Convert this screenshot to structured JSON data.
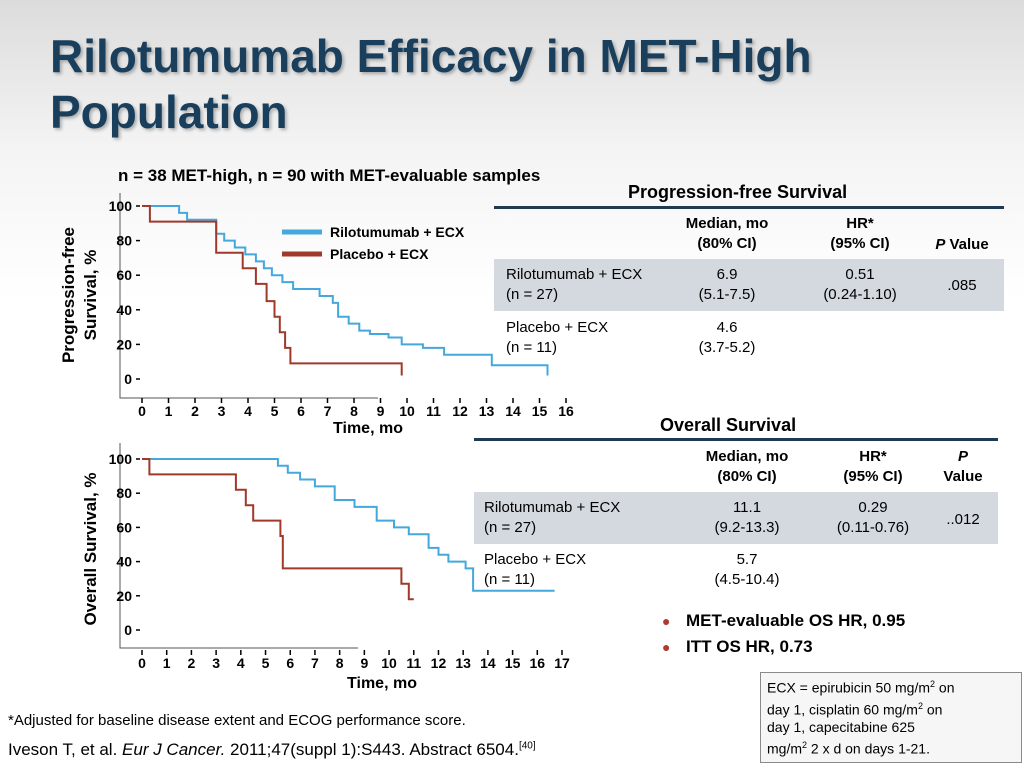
{
  "title": "Rilotumumab Efficacy in MET-High Population",
  "subtitle": "n = 38 MET-high, n = 90 with MET-evaluable samples",
  "colors": {
    "rilotumumab": "#44a8dc",
    "placebo": "#a0392a",
    "title": "#1a3f5c",
    "table_rule": "#1d3a52",
    "table_shade": "#d4d9df"
  },
  "chart_data": [
    {
      "type": "line",
      "step": true,
      "ylabel_line1": "Progression-free",
      "ylabel_line2": "Survival, %",
      "xlabel": "Time, mo",
      "xlim": [
        0,
        16
      ],
      "ylim": [
        0,
        100
      ],
      "xticks": [
        "0",
        "1",
        "2",
        "3",
        "4",
        "5",
        "6",
        "7",
        "8",
        "9",
        "10",
        "11",
        "12",
        "13",
        "14",
        "15",
        "16"
      ],
      "yticks": [
        "100",
        "80",
        "60",
        "40",
        "20",
        "0"
      ],
      "series": [
        {
          "name": "Rilotumumab + ECX",
          "color": "#44a8dc",
          "x": [
            0,
            1.4,
            1.7,
            2.8,
            3.1,
            3.5,
            3.9,
            4.3,
            4.6,
            4.9,
            5.3,
            5.7,
            6.7,
            7.2,
            7.4,
            7.8,
            8.2,
            8.6,
            9.3,
            9.8,
            10.6,
            11.4,
            13.2,
            15.3
          ],
          "y": [
            100,
            96,
            92,
            84,
            80,
            76,
            72,
            68,
            64,
            60,
            56,
            52,
            48,
            44,
            36,
            32,
            28,
            26,
            24,
            20,
            18,
            14,
            8,
            2
          ]
        },
        {
          "name": "Placebo + ECX",
          "color": "#a0392a",
          "x": [
            0,
            0.3,
            2.8,
            3.8,
            4.3,
            4.7,
            5.0,
            5.2,
            5.4,
            5.6,
            9.8
          ],
          "y": [
            100,
            91,
            73,
            64,
            55,
            45,
            36,
            27,
            18,
            9,
            2
          ]
        }
      ]
    },
    {
      "type": "line",
      "step": true,
      "ylabel": "Overall Survival, %",
      "xlabel": "Time, mo",
      "xlim": [
        0,
        17
      ],
      "ylim": [
        0,
        100
      ],
      "xticks": [
        "0",
        "1",
        "2",
        "3",
        "4",
        "5",
        "6",
        "7",
        "8",
        "9",
        "10",
        "11",
        "12",
        "13",
        "14",
        "15",
        "16",
        "17"
      ],
      "yticks": [
        "100",
        "80",
        "60",
        "40",
        "20",
        "0"
      ],
      "series": [
        {
          "name": "Rilotumumab + ECX",
          "color": "#44a8dc",
          "x": [
            0,
            5.5,
            5.9,
            6.4,
            7.0,
            7.8,
            8.6,
            9.5,
            10.2,
            10.8,
            11.6,
            12.0,
            12.4,
            13.1,
            13.4,
            16.7
          ],
          "y": [
            100,
            96,
            92,
            88,
            84,
            76,
            72,
            64,
            60,
            56,
            48,
            44,
            40,
            36,
            23,
            23
          ]
        },
        {
          "name": "Placebo + ECX",
          "color": "#a0392a",
          "x": [
            0,
            0.3,
            3.8,
            4.2,
            4.5,
            5.6,
            5.7,
            10.5,
            10.8,
            11.0
          ],
          "y": [
            100,
            91,
            82,
            73,
            64,
            55,
            36,
            27,
            18,
            18
          ]
        }
      ]
    }
  ],
  "legend": [
    {
      "name": "Rilotumumab + ECX",
      "color": "#44a8dc"
    },
    {
      "name": "Placebo + ECX",
      "color": "#a0392a"
    }
  ],
  "pfs_table": {
    "title": "Progression-free  Survival",
    "col_median_1": "Median, mo",
    "col_median_2": "(80% CI)",
    "col_hr_1": "HR*",
    "col_hr_2": "(95% CI)",
    "col_p_italic": "P",
    "col_p_rest": " Value",
    "rows": [
      {
        "arm": "Rilotumumab + ECX",
        "n": "(n = 27)",
        "median": "6.9",
        "median_ci": "(5.1-7.5)",
        "hr": "0.51",
        "hr_ci": "(0.24-1.10)",
        "p": ".085"
      },
      {
        "arm": "Placebo + ECX",
        "n": "(n = 11)",
        "median": "4.6",
        "median_ci": "(3.7-5.2)",
        "hr": "",
        "hr_ci": "",
        "p": ""
      }
    ]
  },
  "os_table": {
    "title": "Overall Survival",
    "col_median_1": "Median, mo",
    "col_median_2": "(80% CI)",
    "col_hr_1": "HR*",
    "col_hr_2": "(95% CI)",
    "col_p_1": "P",
    "col_p_2": "Value",
    "rows": [
      {
        "arm": "Rilotumumab + ECX",
        "n": "(n = 27)",
        "median": "11.1",
        "median_ci": "(9.2-13.3)",
        "hr": "0.29",
        "hr_ci": "(0.11-0.76)",
        "p": "..012"
      },
      {
        "arm": "Placebo + ECX",
        "n": "(n = 11)",
        "median": "5.7",
        "median_ci": "(4.5-10.4)",
        "hr": "",
        "hr_ci": "",
        "p": ""
      }
    ]
  },
  "bullets": [
    "MET-evaluable OS HR, 0.95",
    "ITT OS HR, 0.73"
  ],
  "ecx_note": {
    "l1": "ECX = epirubicin 50 mg/m",
    "l1b": " on",
    "l2": "day 1, cisplatin 60 mg/m",
    "l2b": " on",
    "l3": "day 1, capecitabine 625",
    "l4": "mg/m",
    "l4b": " 2 x d on days 1-21.",
    "sup": "2"
  },
  "footnote": "*Adjusted for baseline disease extent and ECOG performance score.",
  "citation": {
    "before": "Iveson T, et al. ",
    "journal": "Eur J Cancer.",
    "after": " 2011;47(suppl 1):S443. Abstract 6504.",
    "ref": "[40]"
  }
}
